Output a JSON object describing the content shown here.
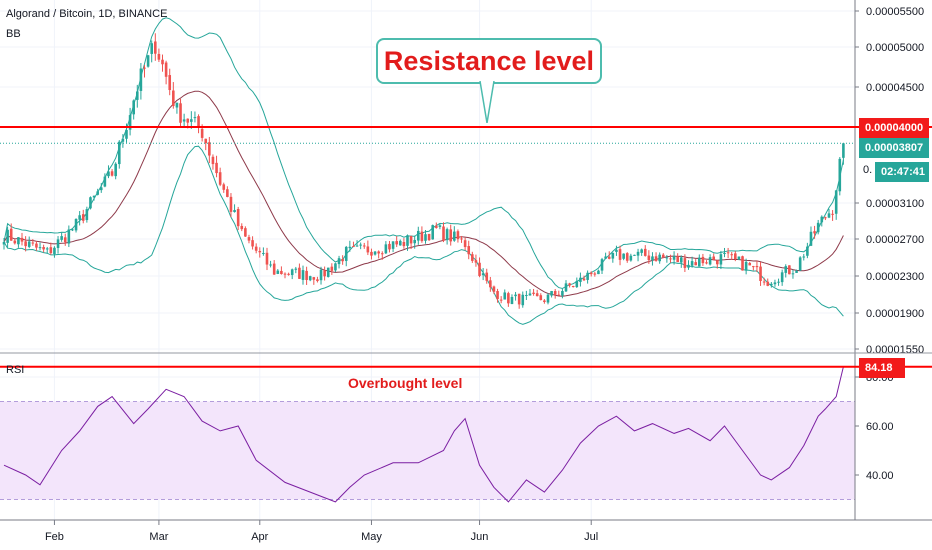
{
  "header": {
    "symbol_line": "Algorand / Bitcoin, 1D, BINANCE",
    "indicator_bb": "BB",
    "indicator_rsi": "RSI"
  },
  "annotations": {
    "resistance_callout": "Resistance level",
    "overbought_label": "Overbought level"
  },
  "price_tags": {
    "resistance": "0.00004000",
    "last_price": "0.00003807",
    "partial": "0.",
    "countdown": "02:47:41",
    "rsi_value": "84.18"
  },
  "colors": {
    "up": "#26a69a",
    "down": "#ef5350",
    "bb_band": "#26a69a",
    "bb_basis": "#8e3a4a",
    "resistance": "#ff0000",
    "rsi_line": "#7b1fa2",
    "rsi_fill": "#f3e5fb"
  },
  "chart_data": [
    {
      "type": "candlestick",
      "title": "Algorand / Bitcoin, 1D, BINANCE",
      "y_ticks": [
        "0.00005500",
        "0.00005000",
        "0.00004500",
        "0.00003100",
        "0.00002700",
        "0.00002300",
        "0.00001900",
        "0.00001550"
      ],
      "y_tick_values": [
        5.5e-05,
        5e-05,
        4.5e-05,
        3.1e-05,
        2.7e-05,
        2.3e-05,
        1.9e-05,
        1.55e-05
      ],
      "x_ticks": [
        "Feb",
        "Mar",
        "Apr",
        "May",
        "Jun",
        "Jul"
      ],
      "resistance_level": 4e-05,
      "last_price": 3.807e-05,
      "indicators": [
        "Bollinger Bands"
      ],
      "close_keyframes": [
        [
          0,
          2.75e-05
        ],
        [
          12,
          2.55e-05
        ],
        [
          20,
          2.85e-05
        ],
        [
          30,
          3.45e-05
        ],
        [
          37,
          4.5e-05
        ],
        [
          42,
          5.05e-05
        ],
        [
          48,
          4.2e-05
        ],
        [
          55,
          3.95e-05
        ],
        [
          60,
          3.35e-05
        ],
        [
          66,
          2.75e-05
        ],
        [
          75,
          2.35e-05
        ],
        [
          88,
          2.3e-05
        ],
        [
          95,
          2.55e-05
        ],
        [
          110,
          2.65e-05
        ],
        [
          120,
          2.8e-05
        ],
        [
          128,
          2.65e-05
        ],
        [
          135,
          2.15e-05
        ],
        [
          140,
          2.05e-05
        ],
        [
          150,
          2.05e-05
        ],
        [
          160,
          2.25e-05
        ],
        [
          170,
          2.52e-05
        ],
        [
          180,
          2.52e-05
        ],
        [
          190,
          2.45e-05
        ],
        [
          200,
          2.5e-05
        ],
        [
          207,
          2.4e-05
        ],
        [
          212,
          2.25e-05
        ],
        [
          220,
          2.4e-05
        ],
        [
          226,
          2.85e-05
        ],
        [
          230,
          3.05e-05
        ],
        [
          233,
          3.81e-05
        ]
      ]
    },
    {
      "type": "line",
      "title": "RSI",
      "y_ticks": [
        "80.00",
        "60.00",
        "40.00"
      ],
      "y_tick_values": [
        80,
        60,
        40
      ],
      "overbought": 70,
      "oversold": 30,
      "last_value": 84.18,
      "x": [
        0,
        6,
        10,
        16,
        21,
        26,
        30,
        36,
        40,
        45,
        50,
        55,
        60,
        65,
        70,
        78,
        85,
        92,
        96,
        100,
        108,
        115,
        122,
        125,
        128,
        132,
        136,
        140,
        145,
        150,
        155,
        160,
        165,
        170,
        175,
        180,
        186,
        190,
        196,
        200,
        205,
        210,
        213,
        218,
        222,
        226,
        228,
        231,
        233
      ],
      "values": [
        44,
        40,
        36,
        50,
        58,
        68,
        72,
        61,
        67,
        75,
        72,
        62,
        58,
        60,
        46,
        37,
        33,
        29,
        35,
        40,
        45,
        45,
        50,
        58,
        63,
        44,
        35,
        29,
        38,
        33,
        42,
        53,
        60,
        64,
        58,
        61,
        57,
        59,
        54,
        60,
        50,
        40,
        38,
        43,
        52,
        64,
        67,
        72,
        84.18
      ]
    }
  ]
}
